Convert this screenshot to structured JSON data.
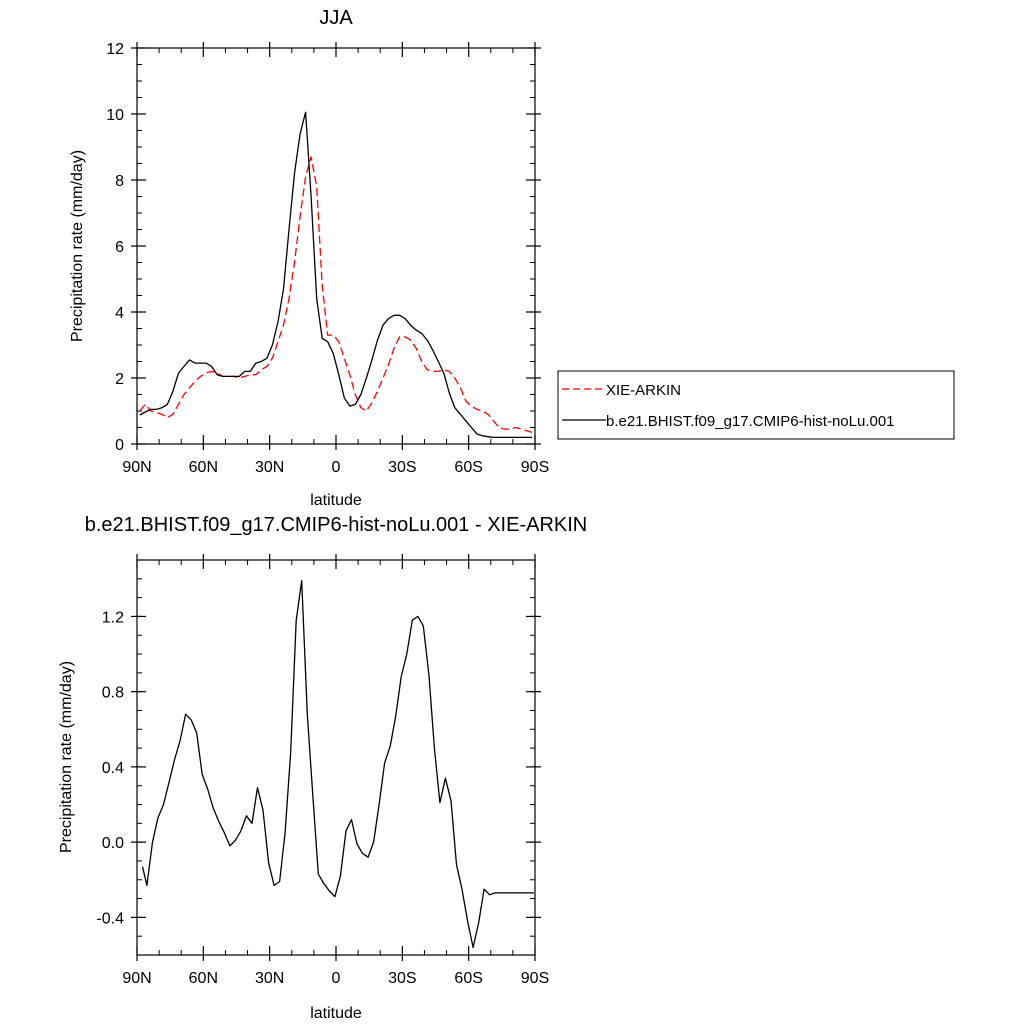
{
  "chart_data": [
    {
      "type": "line",
      "title": "JJA",
      "xlabel": "latitude",
      "ylabel": "Precipitation rate (mm/day)",
      "xlim": [
        -90,
        90
      ],
      "ylim": [
        0,
        12
      ],
      "xticks": [
        {
          "value": -90,
          "label": "90N"
        },
        {
          "value": -60,
          "label": "60N"
        },
        {
          "value": -30,
          "label": "30N"
        },
        {
          "value": 0,
          "label": "0"
        },
        {
          "value": 30,
          "label": "30S"
        },
        {
          "value": 60,
          "label": "60S"
        },
        {
          "value": 90,
          "label": "90S"
        }
      ],
      "yticks": [
        {
          "value": 0,
          "label": "0"
        },
        {
          "value": 2,
          "label": "2"
        },
        {
          "value": 4,
          "label": "4"
        },
        {
          "value": 6,
          "label": "6"
        },
        {
          "value": 8,
          "label": "8"
        },
        {
          "value": 10,
          "label": "10"
        },
        {
          "value": 12,
          "label": "12"
        }
      ],
      "grid": false,
      "legend_position": "right",
      "series": [
        {
          "name": "XIE-ARKIN",
          "color": "#ff0000",
          "dash": "dashed",
          "x": [
            -88.75,
            -86.25,
            -83.75,
            -81.25,
            -78.75,
            -76.25,
            -73.75,
            -71.25,
            -68.75,
            -66.25,
            -63.75,
            -61.25,
            -58.75,
            -56.25,
            -53.75,
            -51.25,
            -48.75,
            -46.25,
            -43.75,
            -41.25,
            -38.75,
            -36.25,
            -33.75,
            -31.25,
            -28.75,
            -26.25,
            -23.75,
            -21.25,
            -18.75,
            -16.25,
            -13.75,
            -11.25,
            -8.75,
            -6.25,
            -3.75,
            -1.25,
            1.25,
            3.75,
            6.25,
            8.75,
            11.25,
            13.75,
            16.25,
            18.75,
            21.25,
            23.75,
            26.25,
            28.75,
            31.25,
            33.75,
            36.25,
            38.75,
            41.25,
            43.75,
            46.25,
            48.75,
            51.25,
            53.75,
            56.25,
            58.75,
            61.25,
            63.75,
            66.25,
            68.75,
            71.25,
            73.75,
            76.25,
            78.75,
            81.25,
            83.75,
            86.25,
            88.75
          ],
          "values": [
            1.0,
            1.2,
            1.0,
            0.95,
            0.9,
            0.8,
            0.9,
            1.2,
            1.5,
            1.7,
            1.9,
            2.05,
            2.15,
            2.2,
            2.15,
            2.05,
            2.05,
            2.05,
            2.0,
            2.05,
            2.1,
            2.1,
            2.25,
            2.35,
            2.6,
            3.1,
            3.6,
            4.4,
            5.5,
            6.9,
            8.1,
            8.7,
            7.8,
            4.8,
            3.3,
            3.3,
            3.1,
            2.6,
            2.1,
            1.5,
            1.1,
            1.0,
            1.25,
            1.6,
            2.0,
            2.4,
            2.9,
            3.25,
            3.25,
            3.15,
            2.9,
            2.5,
            2.25,
            2.2,
            2.2,
            2.25,
            2.2,
            2.0,
            1.7,
            1.3,
            1.15,
            1.05,
            1.0,
            0.9,
            0.7,
            0.5,
            0.45,
            0.45,
            0.5,
            0.45,
            0.4,
            0.35
          ]
        },
        {
          "name": "b.e21.BHIST.f09_g17.CMIP6-hist-noLu.001",
          "color": "#000000",
          "dash": "solid",
          "x": [
            -88.75,
            -86.25,
            -83.75,
            -81.25,
            -78.75,
            -76.25,
            -73.75,
            -71.25,
            -68.75,
            -66.25,
            -63.75,
            -61.25,
            -58.75,
            -56.25,
            -53.75,
            -51.25,
            -48.75,
            -46.25,
            -43.75,
            -41.25,
            -38.75,
            -36.25,
            -33.75,
            -31.25,
            -28.75,
            -26.25,
            -23.75,
            -21.25,
            -18.75,
            -16.25,
            -13.75,
            -11.25,
            -8.75,
            -6.25,
            -3.75,
            -1.25,
            1.25,
            3.75,
            6.25,
            8.75,
            11.25,
            13.75,
            16.25,
            18.75,
            21.25,
            23.75,
            26.25,
            28.75,
            31.25,
            33.75,
            36.25,
            38.75,
            41.25,
            43.75,
            46.25,
            48.75,
            51.25,
            53.75,
            56.25,
            58.75,
            61.25,
            63.75,
            66.25,
            68.75,
            71.25,
            73.75,
            76.25,
            78.75,
            81.25,
            83.75,
            86.25,
            88.75
          ],
          "values": [
            0.88,
            0.97,
            1.05,
            1.05,
            1.1,
            1.2,
            1.6,
            2.15,
            2.35,
            2.55,
            2.45,
            2.45,
            2.45,
            2.35,
            2.1,
            2.05,
            2.05,
            2.05,
            2.05,
            2.2,
            2.2,
            2.45,
            2.5,
            2.6,
            3.0,
            3.7,
            4.7,
            6.5,
            8.2,
            9.4,
            10.05,
            7.5,
            4.4,
            3.2,
            3.1,
            2.75,
            2.1,
            1.4,
            1.15,
            1.2,
            1.5,
            2.0,
            2.55,
            3.15,
            3.6,
            3.8,
            3.9,
            3.9,
            3.8,
            3.6,
            3.45,
            3.35,
            3.15,
            2.85,
            2.5,
            2.15,
            1.55,
            1.1,
            0.9,
            0.7,
            0.5,
            0.3,
            0.25,
            0.22,
            0.2,
            0.2,
            0.2,
            0.2,
            0.2,
            0.2,
            0.2,
            0.2
          ]
        }
      ]
    },
    {
      "type": "line",
      "title": "b.e21.BHIST.f09_g17.CMIP6-hist-noLu.001 - XIE-ARKIN",
      "xlabel": "latitude",
      "ylabel": "Precipitation rate (mm/day)",
      "xlim": [
        -90,
        90
      ],
      "ylim": [
        -0.6,
        1.5
      ],
      "xticks": [
        {
          "value": -90,
          "label": "90N"
        },
        {
          "value": -60,
          "label": "60N"
        },
        {
          "value": -30,
          "label": "30N"
        },
        {
          "value": 0,
          "label": "0"
        },
        {
          "value": 30,
          "label": "30S"
        },
        {
          "value": 60,
          "label": "60S"
        },
        {
          "value": 90,
          "label": "90S"
        }
      ],
      "yticks": [
        {
          "value": -0.4,
          "label": "-0.4"
        },
        {
          "value": 0.0,
          "label": "0.0"
        },
        {
          "value": 0.4,
          "label": "0.4"
        },
        {
          "value": 0.8,
          "label": "0.8"
        },
        {
          "value": 1.2,
          "label": "1.2"
        }
      ],
      "grid": false,
      "series": [
        {
          "color": "#000000",
          "dash": "solid",
          "x": [
            -87.5,
            -85.5,
            -83,
            -80.5,
            -78,
            -75.5,
            -73,
            -70.5,
            -68,
            -65.5,
            -63,
            -60.5,
            -58,
            -55.5,
            -53,
            -50.5,
            -48,
            -45.5,
            -43,
            -40.5,
            -38,
            -35.5,
            -33,
            -30.5,
            -28,
            -25.5,
            -23,
            -20.5,
            -18,
            -15.5,
            -13,
            -10.5,
            -8,
            -5.5,
            -3,
            -0.5,
            2,
            4.5,
            7,
            9.5,
            12,
            14.5,
            17,
            19.5,
            22,
            24.5,
            27,
            29.5,
            32,
            34.5,
            37,
            39.5,
            42,
            44.5,
            47,
            49.5,
            52,
            54.5,
            57,
            59.5,
            62,
            64.5,
            67,
            69.5,
            72,
            74.5,
            77,
            79.5,
            82,
            84.5,
            87,
            89.5
          ],
          "values": [
            -0.13,
            -0.23,
            0.0,
            0.13,
            0.2,
            0.32,
            0.44,
            0.54,
            0.68,
            0.65,
            0.58,
            0.36,
            0.28,
            0.18,
            0.11,
            0.05,
            -0.02,
            0.01,
            0.06,
            0.14,
            0.1,
            0.29,
            0.17,
            -0.11,
            -0.23,
            -0.21,
            0.05,
            0.48,
            1.18,
            1.39,
            0.68,
            0.25,
            -0.17,
            -0.22,
            -0.26,
            -0.29,
            -0.18,
            0.06,
            0.12,
            -0.01,
            -0.06,
            -0.08,
            0.0,
            0.2,
            0.42,
            0.51,
            0.67,
            0.88,
            1.0,
            1.18,
            1.2,
            1.15,
            0.89,
            0.5,
            0.21,
            0.34,
            0.22,
            -0.12,
            -0.25,
            -0.42,
            -0.56,
            -0.43,
            -0.25,
            -0.28,
            -0.27,
            -0.27,
            -0.27,
            -0.27,
            -0.27,
            -0.27,
            -0.27,
            -0.27
          ]
        }
      ]
    }
  ]
}
